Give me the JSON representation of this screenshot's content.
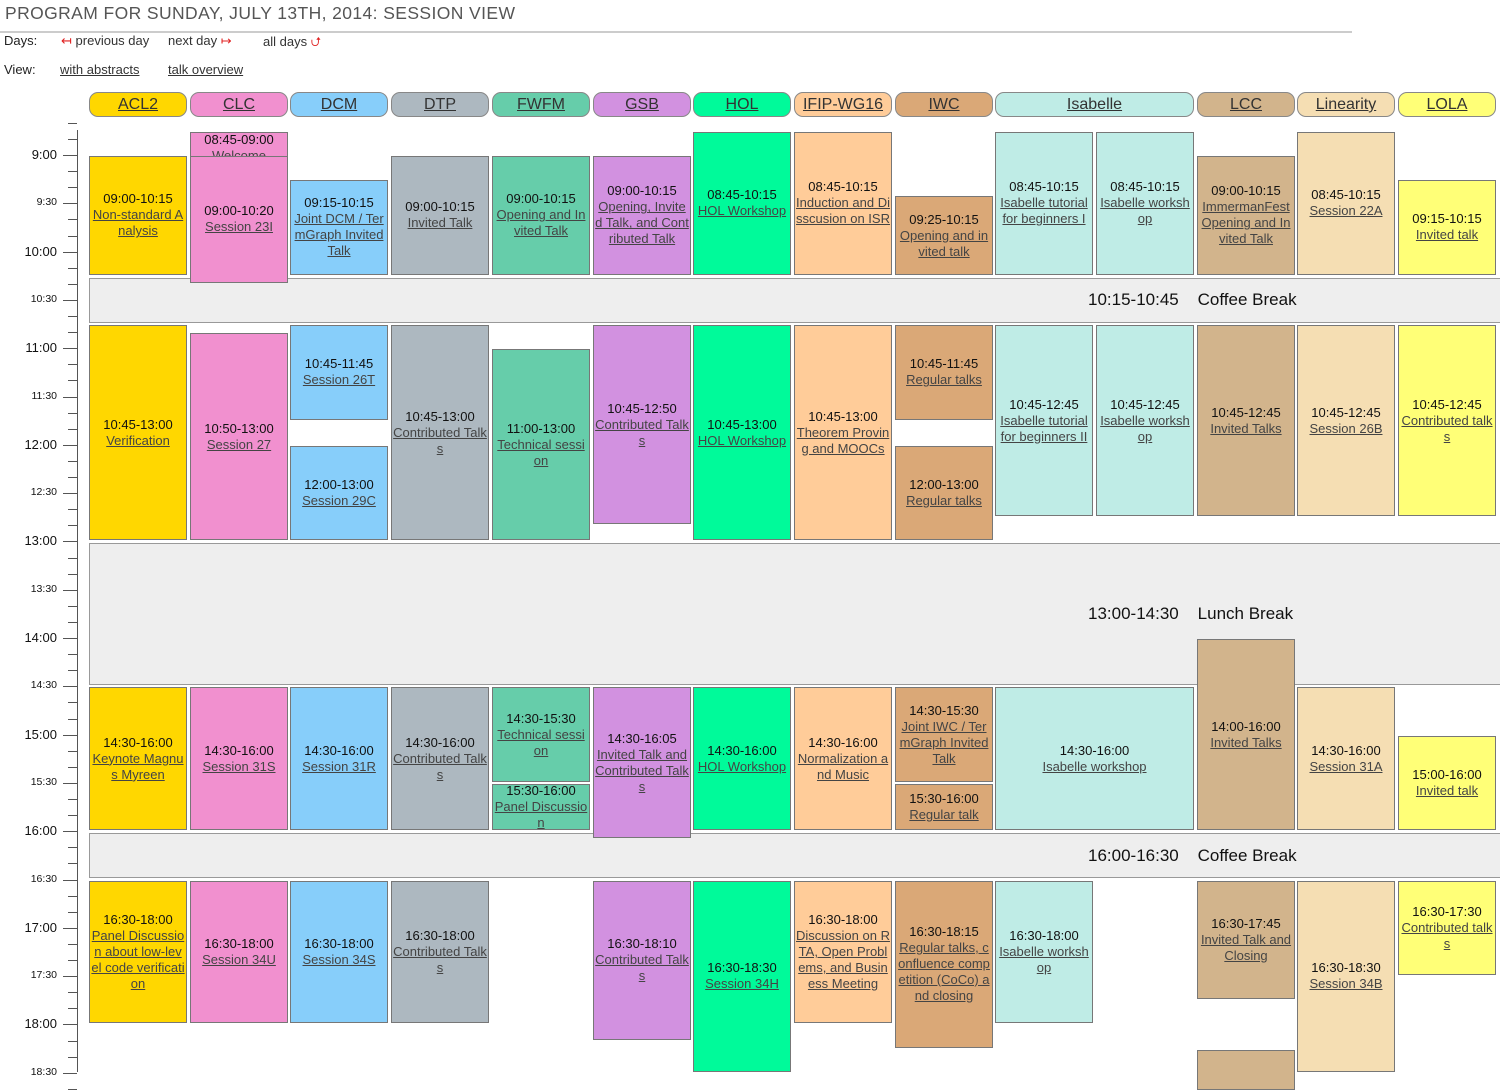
{
  "header": {
    "title": "PROGRAM FOR SUNDAY, JULY 13TH, 2014: SESSION VIEW",
    "days_label": "Days:",
    "previous_day": "previous day",
    "next_day": "next day",
    "all_days": "all days",
    "view_label": "View:",
    "with_abstracts": "with abstracts",
    "talk_overview": "talk overview"
  },
  "time_labels": [
    {
      "t": "9:00",
      "major": true
    },
    {
      "t": "9:30",
      "major": false
    },
    {
      "t": "10:00",
      "major": true
    },
    {
      "t": "10:30",
      "major": false
    },
    {
      "t": "11:00",
      "major": true
    },
    {
      "t": "11:30",
      "major": false
    },
    {
      "t": "12:00",
      "major": true
    },
    {
      "t": "12:30",
      "major": false
    },
    {
      "t": "13:00",
      "major": true
    },
    {
      "t": "13:30",
      "major": false
    },
    {
      "t": "14:00",
      "major": true
    },
    {
      "t": "14:30",
      "major": false
    },
    {
      "t": "15:00",
      "major": true
    },
    {
      "t": "15:30",
      "major": false
    },
    {
      "t": "16:00",
      "major": true
    },
    {
      "t": "16:30",
      "major": false
    },
    {
      "t": "17:00",
      "major": true
    },
    {
      "t": "17:30",
      "major": false
    },
    {
      "t": "18:00",
      "major": true
    },
    {
      "t": "18:30",
      "major": false
    }
  ],
  "tracks": [
    {
      "name": "ACL2",
      "color": "#ffd700"
    },
    {
      "name": "CLC",
      "color": "#f190cf"
    },
    {
      "name": "DCM",
      "color": "#87cefa"
    },
    {
      "name": "DTP",
      "color": "#adb8c0"
    },
    {
      "name": "FWFM",
      "color": "#66cdaa"
    },
    {
      "name": "GSB",
      "color": "#d291e0"
    },
    {
      "name": "HOL",
      "color": "#00fa9a"
    },
    {
      "name": "IFIP-WG16",
      "color": "#ffcc99"
    },
    {
      "name": "IWC",
      "color": "#daa877"
    },
    {
      "name": "Isabelle",
      "color": "#bfece6"
    },
    {
      "name": "LCC",
      "color": "#d2b48c"
    },
    {
      "name": "Linearity",
      "color": "#f5deb3"
    },
    {
      "name": "LOLA",
      "color": "#ffff77"
    }
  ],
  "breaks": [
    {
      "time": "10:15-10:45",
      "label": "Coffee Break"
    },
    {
      "time": "13:00-14:30",
      "label": "Lunch Break"
    },
    {
      "time": "16:00-16:30",
      "label": "Coffee Break"
    }
  ],
  "sessions": [
    {
      "track": 0,
      "time": "09:00-10:15",
      "title": "Non-standard Analysis"
    },
    {
      "track": 0,
      "time": "10:45-13:00",
      "title": "Verification"
    },
    {
      "track": 0,
      "time": "14:30-16:00",
      "title": "Keynote Magnus Myreen"
    },
    {
      "track": 0,
      "time": "16:30-18:00",
      "title": "Panel Discussion about low-level code verification"
    },
    {
      "track": 1,
      "time": "08:45-09:00",
      "title": "Welcome"
    },
    {
      "track": 1,
      "time": "09:00-10:20",
      "title": "Session 23I"
    },
    {
      "track": 1,
      "time": "10:50-13:00",
      "title": "Session 27"
    },
    {
      "track": 1,
      "time": "14:30-16:00",
      "title": "Session 31S"
    },
    {
      "track": 1,
      "time": "16:30-18:00",
      "title": "Session 34U"
    },
    {
      "track": 2,
      "time": "09:15-10:15",
      "title": "Joint DCM / TermGraph Invited Talk"
    },
    {
      "track": 2,
      "time": "10:45-11:45",
      "title": "Session 26T"
    },
    {
      "track": 2,
      "time": "12:00-13:00",
      "title": "Session 29C"
    },
    {
      "track": 2,
      "time": "14:30-16:00",
      "title": "Session 31R"
    },
    {
      "track": 2,
      "time": "16:30-18:00",
      "title": "Session 34S"
    },
    {
      "track": 3,
      "time": "09:00-10:15",
      "title": "Invited Talk"
    },
    {
      "track": 3,
      "time": "10:45-13:00",
      "title": "Contributed Talks"
    },
    {
      "track": 3,
      "time": "14:30-16:00",
      "title": "Contributed Talks"
    },
    {
      "track": 3,
      "time": "16:30-18:00",
      "title": "Contributed Talks"
    },
    {
      "track": 4,
      "time": "09:00-10:15",
      "title": "Opening and Invited Talk"
    },
    {
      "track": 4,
      "time": "11:00-13:00",
      "title": "Technical session"
    },
    {
      "track": 4,
      "time": "14:30-15:30",
      "title": "Technical session"
    },
    {
      "track": 4,
      "time": "15:30-16:00",
      "title": "Panel Discussion"
    },
    {
      "track": 5,
      "time": "09:00-10:15",
      "title": "Opening, Invited Talk, and Contributed Talk"
    },
    {
      "track": 5,
      "time": "10:45-12:50",
      "title": "Contributed Talks"
    },
    {
      "track": 5,
      "time": "14:30-16:05",
      "title": "Invited Talk and Contributed Talks"
    },
    {
      "track": 5,
      "time": "16:30-18:10",
      "title": "Contributed Talks"
    },
    {
      "track": 6,
      "time": "08:45-10:15",
      "title": "HOL Workshop"
    },
    {
      "track": 6,
      "time": "10:45-13:00",
      "title": "HOL Workshop"
    },
    {
      "track": 6,
      "time": "14:30-16:00",
      "title": "HOL Workshop"
    },
    {
      "track": 6,
      "time": "16:30-18:30",
      "title": "Session 34H"
    },
    {
      "track": 7,
      "time": "08:45-10:15",
      "title": "Induction and Disscusion on ISR"
    },
    {
      "track": 7,
      "time": "10:45-13:00",
      "title": "Theorem Proving and MOOCs"
    },
    {
      "track": 7,
      "time": "14:30-16:00",
      "title": "Normalization and Music"
    },
    {
      "track": 7,
      "time": "16:30-18:00",
      "title": "Discussion on RTA, Open Problems, and Business Meeting"
    },
    {
      "track": 8,
      "time": "09:25-10:15",
      "title": "Opening and invited talk"
    },
    {
      "track": 8,
      "time": "10:45-11:45",
      "title": "Regular talks"
    },
    {
      "track": 8,
      "time": "12:00-13:00",
      "title": "Regular talks"
    },
    {
      "track": 8,
      "time": "14:30-15:30",
      "title": "Joint IWC / TermGraph Invited Talk"
    },
    {
      "track": 8,
      "time": "15:30-16:00",
      "title": "Regular talk"
    },
    {
      "track": 8,
      "time": "16:30-18:15",
      "title": "Regular talks, confluence competition (CoCo) and closing"
    },
    {
      "track": 9,
      "sub": 0,
      "time": "08:45-10:15",
      "title": "Isabelle tutorial for beginners I"
    },
    {
      "track": 9,
      "sub": 1,
      "time": "08:45-10:15",
      "title": "Isabelle workshop"
    },
    {
      "track": 9,
      "sub": 0,
      "time": "10:45-12:45",
      "title": "Isabelle tutorial for beginners II"
    },
    {
      "track": 9,
      "sub": 1,
      "time": "10:45-12:45",
      "title": "Isabelle workshop"
    },
    {
      "track": 9,
      "time": "14:30-16:00",
      "title": "Isabelle workshop"
    },
    {
      "track": 9,
      "sub": 0,
      "time": "16:30-18:00",
      "title": "Isabelle workshop"
    },
    {
      "track": 10,
      "time": "09:00-10:15",
      "title": "ImmermanFest Opening and Invited Talk"
    },
    {
      "track": 10,
      "time": "10:45-12:45",
      "title": "Invited Talks"
    },
    {
      "track": 10,
      "time": "14:00-16:00",
      "title": "Invited Talks"
    },
    {
      "track": 10,
      "time": "16:30-17:45",
      "title": "Invited Talk and Closing"
    },
    {
      "track": 11,
      "time": "08:45-10:15",
      "title": "Session 22A"
    },
    {
      "track": 11,
      "time": "10:45-12:45",
      "title": "Session 26B"
    },
    {
      "track": 11,
      "time": "14:30-16:00",
      "title": "Session 31A"
    },
    {
      "track": 11,
      "time": "16:30-18:30",
      "title": "Session 34B"
    },
    {
      "track": 12,
      "time": "09:15-10:15",
      "title": "Invited talk"
    },
    {
      "track": 12,
      "time": "10:45-12:45",
      "title": "Contributed talks"
    },
    {
      "track": 12,
      "time": "15:00-16:00",
      "title": "Invited talk"
    },
    {
      "track": 12,
      "time": "16:30-17:30",
      "title": "Contributed talks"
    }
  ]
}
